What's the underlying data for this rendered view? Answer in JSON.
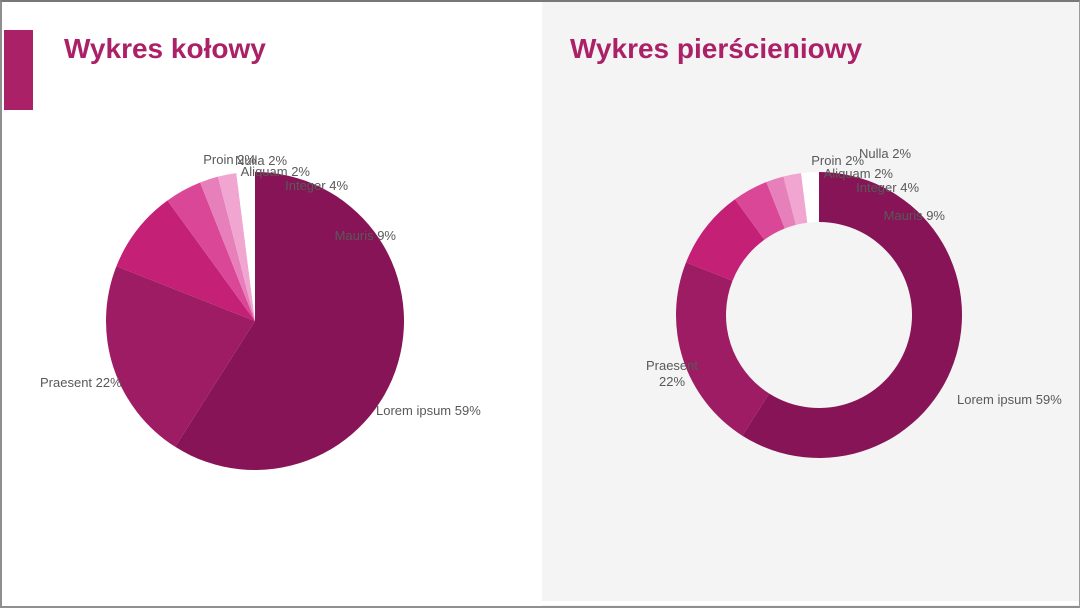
{
  "page": {
    "accent_color": "#AB2167",
    "label_color": "#595959",
    "left_panel_bg": "#FFFFFF",
    "right_panel_bg": "#F5F4F4"
  },
  "left_panel": {
    "title": "Wykres kołowy"
  },
  "right_panel": {
    "title": "Wykres pierścieniowy"
  },
  "chart_data": [
    {
      "type": "pie",
      "title": "Wykres kołowy",
      "categories": [
        "Lorem ipsum",
        "Praesent",
        "Mauris",
        "Integer",
        "Aliquam",
        "Proin",
        "Nulla"
      ],
      "values": [
        59,
        22,
        9,
        4,
        2,
        2,
        2
      ],
      "unit": "%",
      "colors": [
        "#871456",
        "#9E1C63",
        "#C32076",
        "#DB4797",
        "#E77FBA",
        "#F0A6D1",
        "#FFFFFF"
      ],
      "data_labels": [
        "Lorem ipsum 59%",
        "Praesent  22%",
        "Mauris  9%",
        "Integer  4%",
        "Aliquam  2%",
        "Proin 2%",
        "Nulla  2%"
      ],
      "start_angle_deg": 0,
      "direction": "clockwise",
      "legend": "none"
    },
    {
      "type": "donut",
      "title": "Wykres pierścieniowy",
      "categories": [
        "Lorem ipsum",
        "Praesent",
        "Mauris",
        "Integer",
        "Aliquam",
        "Proin",
        "Nulla"
      ],
      "values": [
        59,
        22,
        9,
        4,
        2,
        2,
        2
      ],
      "unit": "%",
      "colors": [
        "#871456",
        "#9E1C63",
        "#C32076",
        "#DB4797",
        "#E77FBA",
        "#F0A6D1",
        "#FFFFFF"
      ],
      "data_labels": [
        "Lorem ipsum 59%",
        "Praesent\n22%",
        "Mauris  9%",
        "Integer  4%",
        "Aliquam  2%",
        "Proin 2%",
        "Nulla  2%"
      ],
      "start_angle_deg": 0,
      "direction": "clockwise",
      "legend": "none"
    }
  ]
}
